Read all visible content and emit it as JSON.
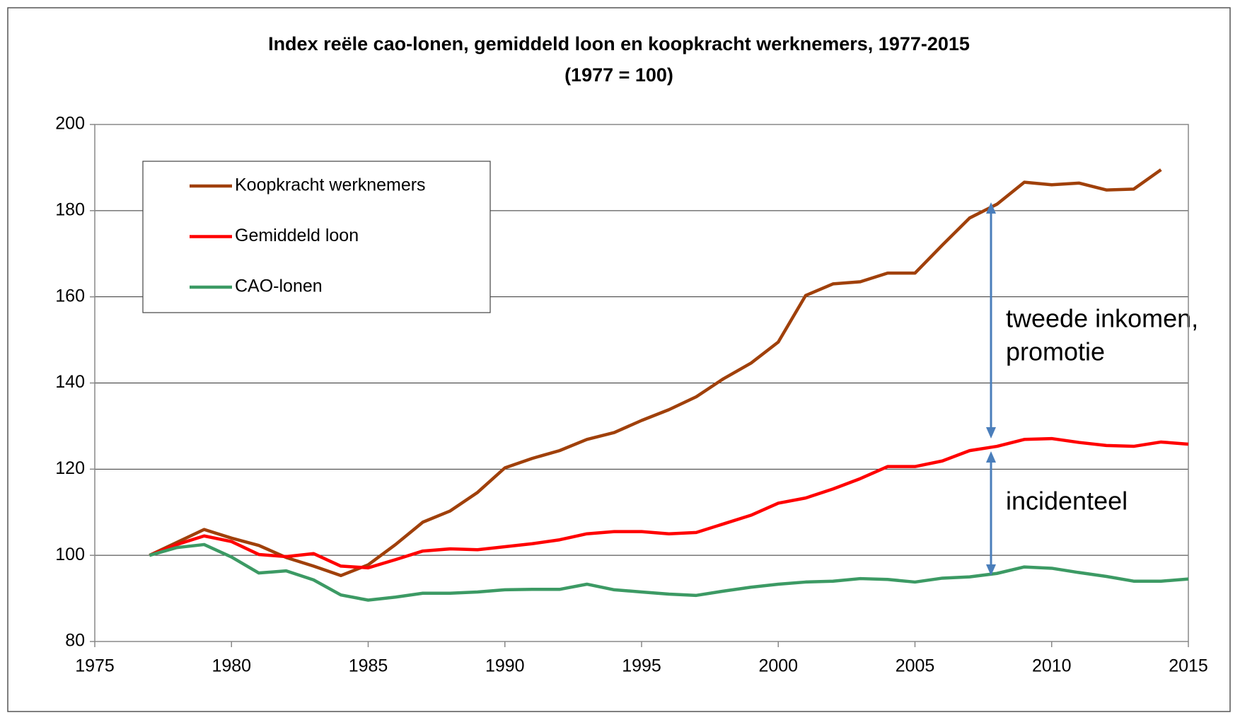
{
  "chart_data": {
    "type": "line",
    "title": "Index reële cao-lonen,  gemiddeld loon en koopkracht werknemers,  1977-2015",
    "subtitle": "(1977 = 100)",
    "x": [
      1977,
      1978,
      1979,
      1980,
      1981,
      1982,
      1983,
      1984,
      1985,
      1986,
      1987,
      1988,
      1989,
      1990,
      1991,
      1992,
      1993,
      1994,
      1995,
      1996,
      1997,
      1998,
      1999,
      2000,
      2001,
      2002,
      2003,
      2004,
      2005,
      2006,
      2007,
      2008,
      2009,
      2010,
      2011,
      2012,
      2013,
      2014,
      2015
    ],
    "series": [
      {
        "name": "Koopkracht werknemers",
        "color": "#a0400a",
        "values": [
          100,
          103,
          106,
          104,
          102.3,
          99.5,
          97.5,
          95.3,
          97.8,
          102.5,
          107.7,
          110.3,
          114.6,
          120.3,
          122.5,
          124.3,
          126.9,
          128.5,
          131.3,
          133.8,
          136.8,
          141,
          144.6,
          149.5,
          160.3,
          163,
          163.5,
          165.5,
          165.5,
          172,
          178.3,
          181.5,
          186.6,
          186,
          186.4,
          184.8,
          185,
          189.5,
          null
        ]
      },
      {
        "name": "Gemiddeld loon",
        "color": "#ff0000",
        "values": [
          100,
          102.5,
          104.5,
          103.2,
          100.2,
          99.7,
          100.4,
          97.5,
          97.1,
          99,
          101,
          101.5,
          101.3,
          102,
          102.7,
          103.6,
          105,
          105.5,
          105.5,
          105,
          105.3,
          107.3,
          109.3,
          112.1,
          113.3,
          115.4,
          117.8,
          120.6,
          120.6,
          121.9,
          124.3,
          125.3,
          126.9,
          127.1,
          126.2,
          125.5,
          125.3,
          126.3,
          125.8
        ]
      },
      {
        "name": "CAO-lonen",
        "color": "#3c9a64",
        "values": [
          100,
          101.8,
          102.5,
          99.6,
          95.9,
          96.4,
          94.3,
          90.8,
          89.6,
          90.3,
          91.2,
          91.2,
          91.5,
          92,
          92.1,
          92.1,
          93.3,
          92,
          91.5,
          91,
          90.7,
          91.7,
          92.6,
          93.3,
          93.8,
          94,
          94.6,
          94.4,
          93.8,
          94.7,
          95,
          95.8,
          97.3,
          97,
          96,
          95.1,
          94,
          94,
          94.5
        ]
      }
    ],
    "annotations": [
      "tweede inkomen,",
      "promotie",
      "incidenteel"
    ],
    "xlim": [
      1975,
      2015
    ],
    "xticks": [
      1975,
      1980,
      1985,
      1990,
      1995,
      2000,
      2005,
      2010,
      2015
    ],
    "ylim": [
      80,
      200
    ],
    "yticks": [
      80,
      100,
      120,
      140,
      160,
      180,
      200
    ],
    "grid": true,
    "legend": "upper left"
  }
}
